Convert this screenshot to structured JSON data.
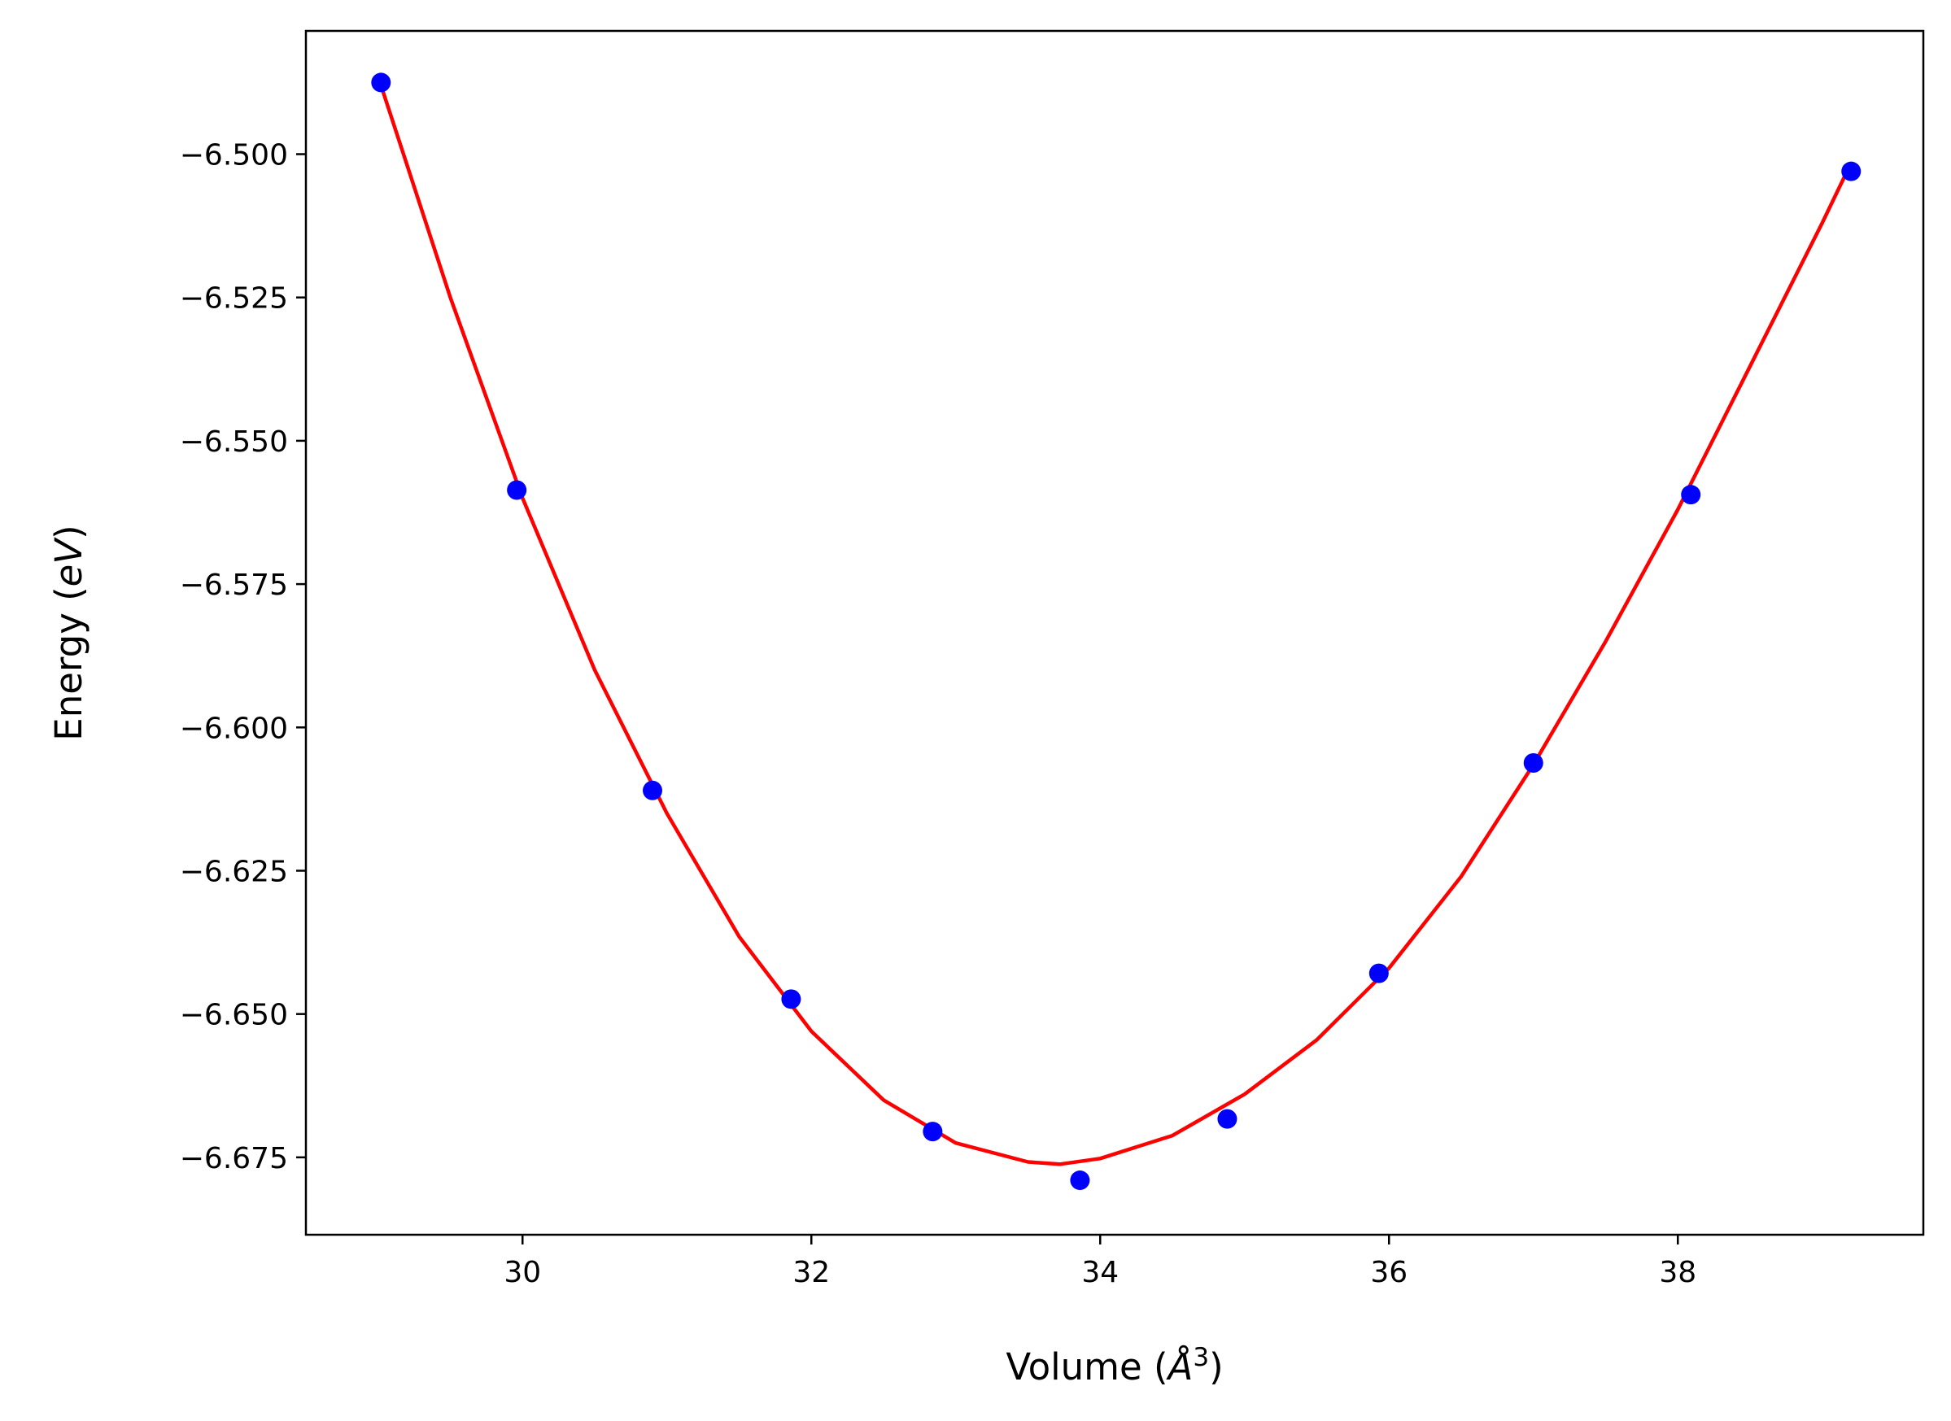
{
  "chart_data": {
    "type": "scatter",
    "xlabel": {
      "prefix": "Volume (",
      "unit": "Å",
      "exponent": "3",
      "suffix": ")"
    },
    "ylabel": {
      "prefix": "Energy (",
      "unit": "eV",
      "suffix": ")"
    },
    "xlim": [
      28.5,
      39.7
    ],
    "ylim": [
      -6.6885,
      -6.4785
    ],
    "x_ticks": [
      30,
      32,
      34,
      36,
      38
    ],
    "x_tick_labels": [
      "30",
      "32",
      "34",
      "36",
      "38"
    ],
    "y_ticks": [
      -6.5,
      -6.525,
      -6.55,
      -6.575,
      -6.6,
      -6.625,
      -6.65,
      -6.675
    ],
    "y_tick_labels": [
      "−6.500",
      "−6.525",
      "−6.550",
      "−6.575",
      "−6.600",
      "−6.625",
      "−6.650",
      "−6.675"
    ],
    "grid": false,
    "series": [
      {
        "kind": "points",
        "color": "#0000ff",
        "x": [
          29.02,
          29.96,
          30.9,
          31.86,
          32.84,
          33.86,
          34.88,
          35.93,
          37.0,
          38.09,
          39.2
        ],
        "y": [
          -6.4875,
          -6.5586,
          -6.611,
          -6.6474,
          -6.6705,
          -6.679,
          -6.6683,
          -6.6429,
          -6.6062,
          -6.5594,
          -6.503
        ]
      },
      {
        "kind": "fit",
        "color": "#ff0000",
        "x": [
          29.02,
          29.5,
          30.0,
          30.5,
          31.0,
          31.5,
          32.0,
          32.5,
          33.0,
          33.5,
          33.72,
          34.0,
          34.5,
          35.0,
          35.5,
          36.0,
          36.5,
          37.0,
          37.5,
          38.0,
          38.5,
          39.0,
          39.2
        ],
        "y": [
          -6.488,
          -6.525,
          -6.56,
          -6.59,
          -6.615,
          -6.6365,
          -6.653,
          -6.665,
          -6.6725,
          -6.6758,
          -6.6762,
          -6.6752,
          -6.6712,
          -6.664,
          -6.6545,
          -6.642,
          -6.626,
          -6.6065,
          -6.585,
          -6.562,
          -6.537,
          -6.512,
          -6.5015
        ]
      }
    ]
  }
}
